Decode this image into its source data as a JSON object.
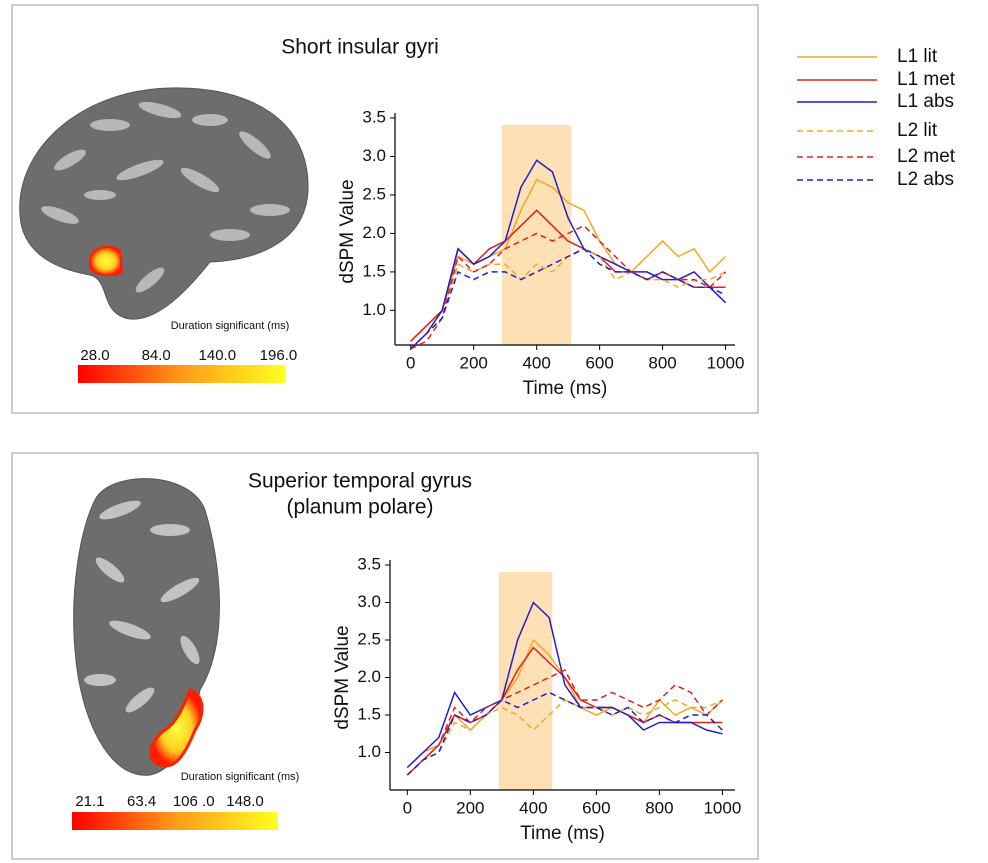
{
  "chart_data": [
    {
      "type": "line",
      "title": "Short insular gyri",
      "xlabel": "Time (ms)",
      "ylabel": "dSPM Value",
      "x": [
        0,
        50,
        100,
        150,
        200,
        250,
        300,
        350,
        400,
        450,
        500,
        550,
        600,
        650,
        700,
        750,
        800,
        850,
        900,
        950,
        1000
      ],
      "xlim": [
        -50,
        1030
      ],
      "ylim": [
        0.55,
        3.5
      ],
      "xticks": [
        0,
        200,
        400,
        600,
        800,
        1000
      ],
      "yticks": [
        {
          "value": 1.0,
          "label": "1.0"
        },
        {
          "value": 1.5,
          "label": "1.5"
        },
        {
          "value": 2.0,
          "label": "2.0"
        },
        {
          "value": 2.5,
          "label": "2.5"
        },
        {
          "value": 3.0,
          "label": "3.0"
        },
        {
          "value": 3.5,
          "label": "3.5"
        }
      ],
      "highlight": [
        290,
        510
      ],
      "highlight_color": "#fde0b4",
      "series": [
        {
          "name": "L1 lit",
          "color": "#f5a623",
          "dashed": false,
          "values": [
            0.6,
            0.8,
            1.0,
            1.7,
            1.6,
            1.7,
            1.8,
            2.3,
            2.7,
            2.6,
            2.4,
            2.3,
            1.9,
            1.6,
            1.5,
            1.7,
            1.9,
            1.7,
            1.8,
            1.5,
            1.7
          ]
        },
        {
          "name": "L1 met",
          "color": "#e0201b",
          "dashed": false,
          "values": [
            0.6,
            0.8,
            1.0,
            1.8,
            1.6,
            1.8,
            1.9,
            2.1,
            2.3,
            2.1,
            1.9,
            1.8,
            1.7,
            1.5,
            1.5,
            1.4,
            1.5,
            1.4,
            1.3,
            1.3,
            1.3
          ]
        },
        {
          "name": "L1 abs",
          "color": "#1f1fd0",
          "dashed": false,
          "values": [
            0.5,
            0.7,
            1.0,
            1.8,
            1.6,
            1.7,
            1.9,
            2.6,
            2.95,
            2.8,
            2.2,
            1.8,
            1.7,
            1.6,
            1.5,
            1.5,
            1.4,
            1.4,
            1.5,
            1.3,
            1.1
          ]
        },
        {
          "name": "L2 lit",
          "color": "#f5a623",
          "dashed": true,
          "values": [
            0.5,
            0.7,
            0.9,
            1.6,
            1.5,
            1.6,
            1.6,
            1.4,
            1.6,
            1.5,
            1.7,
            1.8,
            1.7,
            1.4,
            1.5,
            1.4,
            1.4,
            1.3,
            1.4,
            1.4,
            1.5
          ]
        },
        {
          "name": "L2 met",
          "color": "#e0201b",
          "dashed": true,
          "values": [
            0.5,
            0.6,
            0.9,
            1.7,
            1.5,
            1.6,
            1.8,
            1.9,
            2.0,
            1.9,
            2.0,
            2.1,
            1.9,
            1.7,
            1.5,
            1.4,
            1.5,
            1.4,
            1.4,
            1.3,
            1.5
          ]
        },
        {
          "name": "L2 abs",
          "color": "#1f1fd0",
          "dashed": true,
          "values": [
            0.5,
            0.7,
            0.9,
            1.5,
            1.4,
            1.5,
            1.5,
            1.4,
            1.5,
            1.6,
            1.7,
            1.8,
            1.6,
            1.5,
            1.5,
            1.4,
            1.5,
            1.4,
            1.3,
            1.3,
            1.2
          ]
        }
      ],
      "colorbar": {
        "label": "Duration significant (ms)",
        "lim": [
          12.4,
          202
        ],
        "ticks": [
          {
            "value": 28,
            "label": "28.0"
          },
          {
            "value": 84,
            "label": "84.0"
          },
          {
            "value": 140,
            "label": "140.0"
          },
          {
            "value": 196,
            "label": "196.0"
          }
        ]
      }
    },
    {
      "type": "line",
      "title": [
        "Superior temporal gyrus",
        "(planum polare)"
      ],
      "xlabel": "Time (ms)",
      "ylabel": "dSPM Value",
      "x": [
        0,
        50,
        100,
        150,
        200,
        250,
        300,
        350,
        400,
        450,
        500,
        550,
        600,
        650,
        700,
        750,
        800,
        850,
        900,
        950,
        1000
      ],
      "xlim": [
        -55,
        1040
      ],
      "ylim": [
        0.5,
        3.5
      ],
      "xticks": [
        0,
        200,
        400,
        600,
        800,
        1000
      ],
      "yticks": [
        {
          "value": 1.0,
          "label": "1.0"
        },
        {
          "value": 1.5,
          "label": "1.5"
        },
        {
          "value": 2.0,
          "label": "2.0"
        },
        {
          "value": 2.5,
          "label": "2.5"
        },
        {
          "value": 3.0,
          "label": "3.0"
        },
        {
          "value": 3.5,
          "label": "3.5"
        }
      ],
      "highlight": [
        290,
        460
      ],
      "highlight_color": "#fde0b4",
      "series": [
        {
          "color": "#f5a623",
          "dashed": false,
          "values": [
            0.8,
            1.0,
            1.1,
            1.5,
            1.3,
            1.5,
            1.7,
            2.0,
            2.5,
            2.3,
            2.0,
            1.6,
            1.5,
            1.6,
            1.5,
            1.4,
            1.7,
            1.5,
            1.6,
            1.5,
            1.7
          ]
        },
        {
          "color": "#e0201b",
          "dashed": false,
          "values": [
            0.7,
            0.9,
            1.1,
            1.5,
            1.4,
            1.5,
            1.7,
            2.1,
            2.4,
            2.2,
            2.0,
            1.7,
            1.6,
            1.6,
            1.5,
            1.4,
            1.5,
            1.4,
            1.4,
            1.4,
            1.4
          ]
        },
        {
          "color": "#1f1fd0",
          "dashed": false,
          "values": [
            0.8,
            1.0,
            1.2,
            1.8,
            1.5,
            1.6,
            1.7,
            2.5,
            3.0,
            2.8,
            1.9,
            1.6,
            1.6,
            1.6,
            1.5,
            1.3,
            1.4,
            1.4,
            1.4,
            1.3,
            1.25
          ]
        },
        {
          "color": "#f5a623",
          "dashed": true,
          "values": [
            0.7,
            0.9,
            1.0,
            1.4,
            1.3,
            1.5,
            1.6,
            1.5,
            1.3,
            1.5,
            1.7,
            1.6,
            1.6,
            1.5,
            1.6,
            1.5,
            1.6,
            1.7,
            1.6,
            1.6,
            1.7
          ]
        },
        {
          "color": "#e0201b",
          "dashed": true,
          "values": [
            0.7,
            0.9,
            1.1,
            1.6,
            1.4,
            1.6,
            1.7,
            1.8,
            1.9,
            2.0,
            2.1,
            1.7,
            1.7,
            1.8,
            1.7,
            1.6,
            1.7,
            1.9,
            1.8,
            1.5,
            1.7
          ]
        },
        {
          "color": "#1f1fd0",
          "dashed": true,
          "values": [
            0.7,
            0.9,
            1.0,
            1.5,
            1.4,
            1.5,
            1.7,
            1.6,
            1.7,
            1.8,
            1.7,
            1.6,
            1.6,
            1.5,
            1.6,
            1.4,
            1.5,
            1.4,
            1.5,
            1.5,
            1.3
          ]
        }
      ],
      "colorbar": {
        "label": "Duration significant (ms)",
        "lim": [
          6.4,
          175
        ],
        "ticks": [
          {
            "value": 21.1,
            "label": "21.1"
          },
          {
            "value": 63.4,
            "label": "63.4"
          },
          {
            "value": 106,
            "label": "106 .0"
          },
          {
            "value": 148,
            "label": "148.0"
          }
        ]
      }
    }
  ]
}
